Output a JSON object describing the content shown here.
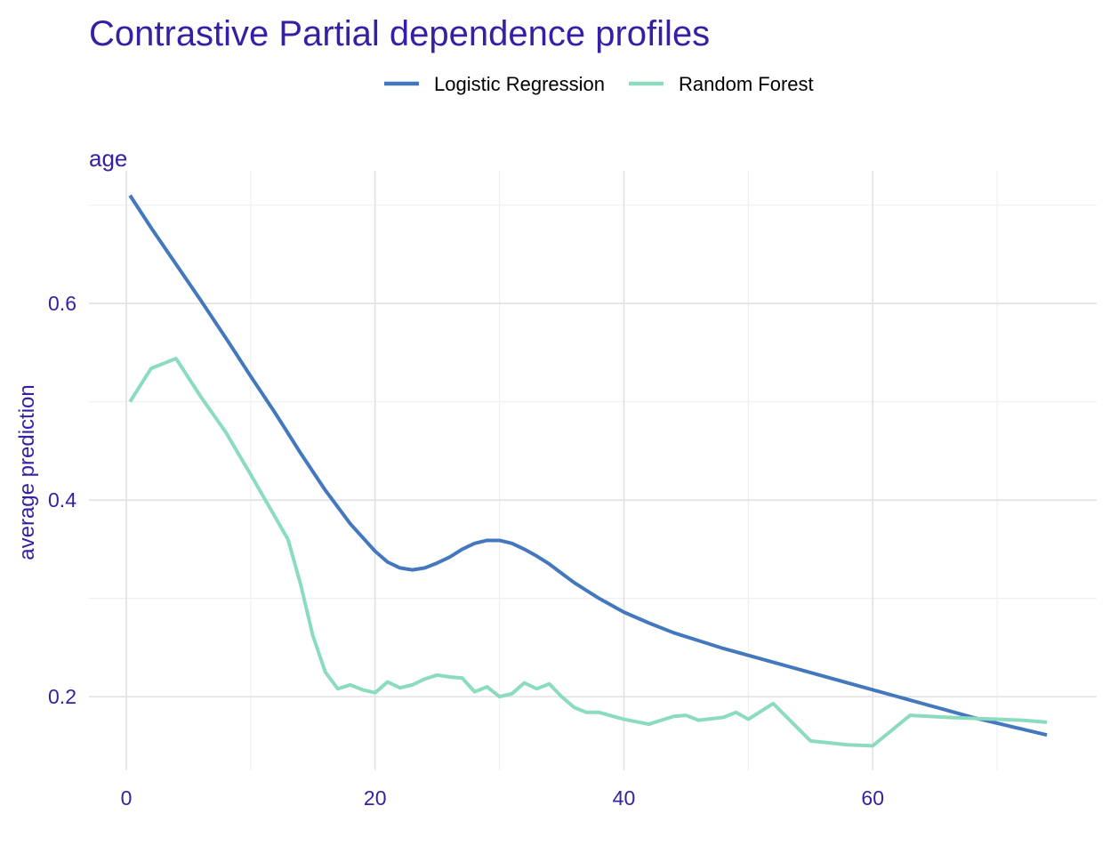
{
  "chart_data": {
    "type": "line",
    "title": "Contrastive Partial dependence profiles",
    "facet_label": "age",
    "xlabel": "",
    "ylabel": "average prediction",
    "xlim": [
      -3,
      78
    ],
    "ylim": [
      0.125,
      0.735
    ],
    "x_ticks": [
      0,
      20,
      40,
      60
    ],
    "x_tick_labels": [
      "0",
      "20",
      "40",
      "60"
    ],
    "x_minor_ticks": [
      10,
      30,
      50,
      70
    ],
    "y_ticks": [
      0.2,
      0.4,
      0.6
    ],
    "y_tick_labels": [
      "0.2",
      "0.4",
      "0.6"
    ],
    "y_minor_ticks": [
      0.3,
      0.5,
      0.7
    ],
    "grid": true,
    "legend_position": "top",
    "series": [
      {
        "name": "Logistic Regression",
        "color": "#4378bf",
        "x": [
          0.3,
          2,
          4,
          6,
          8,
          10,
          12,
          14,
          16,
          18,
          20,
          21,
          22,
          23,
          24,
          25,
          26,
          27,
          28,
          29,
          30,
          31,
          32,
          33,
          34,
          36,
          38,
          40,
          42,
          44,
          46,
          48,
          50,
          52,
          54,
          56,
          58,
          60,
          62,
          64,
          66,
          68,
          70,
          72,
          74
        ],
        "y": [
          0.71,
          0.677,
          0.64,
          0.603,
          0.565,
          0.526,
          0.488,
          0.448,
          0.41,
          0.376,
          0.348,
          0.337,
          0.331,
          0.329,
          0.331,
          0.336,
          0.342,
          0.35,
          0.356,
          0.359,
          0.359,
          0.356,
          0.35,
          0.343,
          0.335,
          0.316,
          0.3,
          0.286,
          0.275,
          0.265,
          0.257,
          0.249,
          0.242,
          0.235,
          0.228,
          0.221,
          0.214,
          0.207,
          0.2,
          0.193,
          0.186,
          0.179,
          0.173,
          0.167,
          0.161
        ]
      },
      {
        "name": "Random Forest",
        "color": "#8bdcbe",
        "x": [
          0.3,
          2,
          4,
          6,
          8,
          10,
          12,
          13,
          14,
          15,
          16,
          17,
          18,
          19,
          20,
          21,
          22,
          23,
          24,
          25,
          26,
          27,
          28,
          29,
          30,
          31,
          32,
          33,
          34,
          35,
          36,
          37,
          38,
          40,
          42,
          44,
          45,
          46,
          48,
          49,
          50,
          52,
          55,
          58,
          60,
          63,
          66,
          68,
          70,
          72,
          74
        ],
        "y": [
          0.5,
          0.534,
          0.544,
          0.505,
          0.469,
          0.426,
          0.382,
          0.36,
          0.315,
          0.262,
          0.225,
          0.208,
          0.212,
          0.207,
          0.204,
          0.215,
          0.209,
          0.212,
          0.218,
          0.222,
          0.22,
          0.219,
          0.205,
          0.21,
          0.2,
          0.203,
          0.214,
          0.208,
          0.213,
          0.2,
          0.189,
          0.184,
          0.184,
          0.177,
          0.172,
          0.18,
          0.181,
          0.176,
          0.179,
          0.184,
          0.177,
          0.193,
          0.155,
          0.151,
          0.15,
          0.181,
          0.179,
          0.178,
          0.177,
          0.176,
          0.174
        ]
      }
    ]
  }
}
